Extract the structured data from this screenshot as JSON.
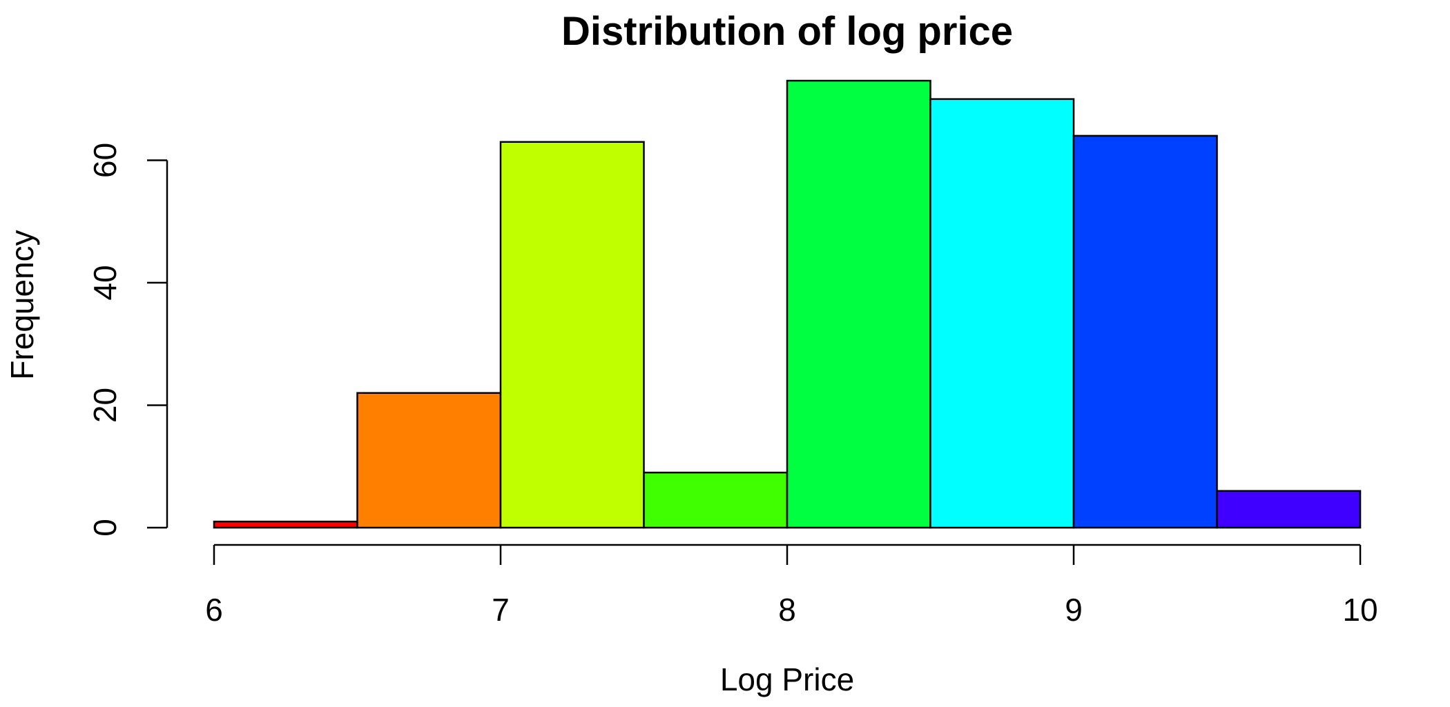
{
  "chart_data": {
    "type": "bar",
    "title": "Distribution of log price",
    "xlabel": "Log Price",
    "ylabel": "Frequency",
    "bin_edges": [
      6,
      6.5,
      7,
      7.5,
      8,
      8.5,
      9,
      9.5,
      10
    ],
    "values": [
      1,
      22,
      63,
      9,
      73,
      70,
      64,
      6
    ],
    "colors": [
      "#FF0000",
      "#FF8000",
      "#BFFF00",
      "#40FF00",
      "#00FF40",
      "#00FFFF",
      "#0040FF",
      "#4000FF"
    ],
    "xlim": [
      6,
      10
    ],
    "ylim": [
      0,
      73
    ],
    "x_ticks": [
      6,
      7,
      8,
      9,
      10
    ],
    "x_tick_labels": [
      "6",
      "7",
      "8",
      "9",
      "10"
    ],
    "y_ticks": [
      0,
      20,
      40,
      60
    ],
    "y_tick_labels": [
      "0",
      "20",
      "40",
      "60"
    ],
    "grid": false,
    "legend": "none"
  }
}
